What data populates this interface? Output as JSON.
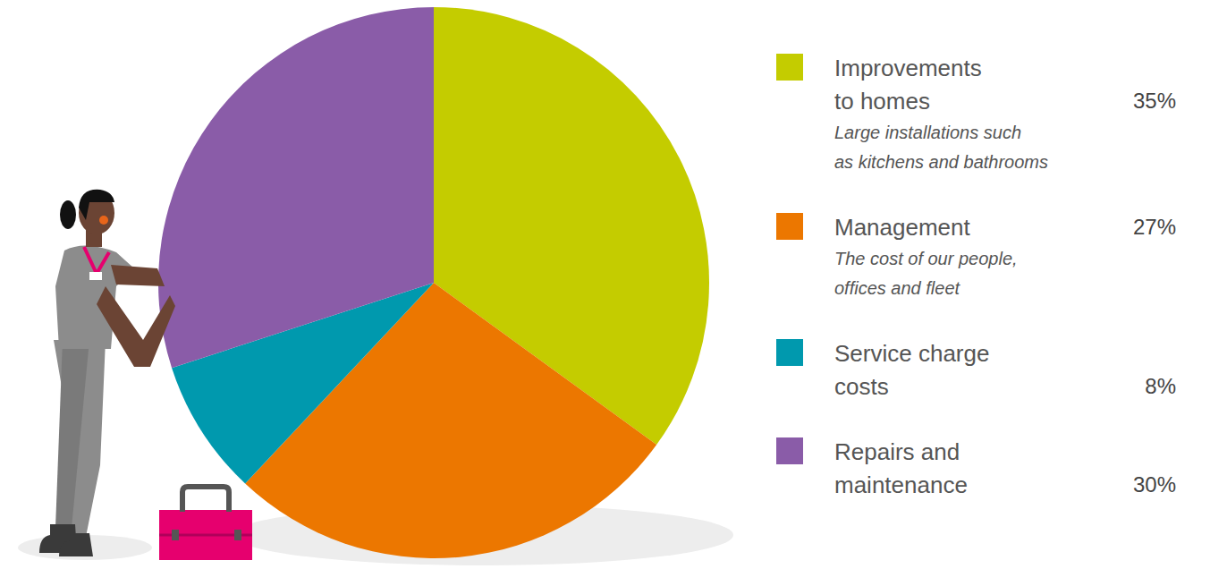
{
  "chart_data": {
    "type": "pie",
    "categories": [
      "Improvements to homes",
      "Management",
      "Service charge costs",
      "Repairs and maintenance"
    ],
    "values": [
      35,
      27,
      8,
      30
    ],
    "value_labels": [
      "35%",
      "27%",
      "8%",
      "30%"
    ],
    "descriptions": [
      [
        "Large installations such",
        "as kitchens and bathrooms"
      ],
      [
        "The cost of our people,",
        "offices and fleet"
      ],
      null,
      null
    ],
    "colors": [
      "#c4cc00",
      "#ec7700",
      "#0099ae",
      "#8a5ca8"
    ],
    "legend": "right"
  }
}
